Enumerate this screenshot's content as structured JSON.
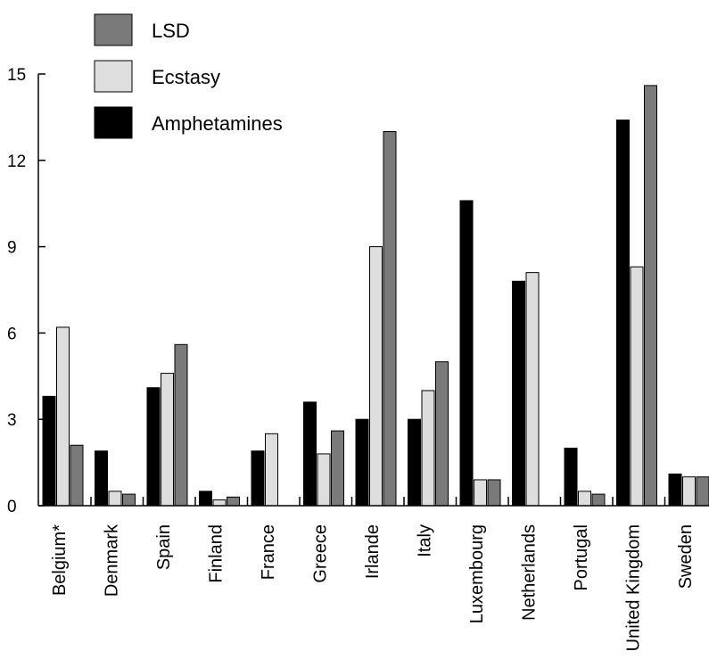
{
  "chart_data": {
    "type": "bar",
    "title": "",
    "xlabel": "",
    "ylabel": "",
    "ylim": [
      0,
      15
    ],
    "yticks": [
      0,
      3,
      6,
      9,
      12,
      15
    ],
    "categories": [
      "Belgium*",
      "Denmark",
      "Spain",
      "Finland",
      "France",
      "Greece",
      "Irlande",
      "Italy",
      "Luxembourg",
      "Netherlands",
      "Portugal",
      "United Kingdom",
      "Sweden"
    ],
    "series": [
      {
        "name": "Amphetamines",
        "color": "#000000",
        "values": [
          3.8,
          1.9,
          4.1,
          0.5,
          1.9,
          3.6,
          3.0,
          3.0,
          10.6,
          7.8,
          2.0,
          13.4,
          1.1
        ]
      },
      {
        "name": "Ecstasy",
        "color": "#dedede",
        "values": [
          6.2,
          0.5,
          4.6,
          0.2,
          2.5,
          1.8,
          9.0,
          4.0,
          0.9,
          8.1,
          0.5,
          8.3,
          1.0
        ]
      },
      {
        "name": "LSD",
        "color": "#7a7a7a",
        "values": [
          2.1,
          0.4,
          5.6,
          0.3,
          0.0,
          2.6,
          13.0,
          5.0,
          0.9,
          0.0,
          0.4,
          14.6,
          1.0
        ]
      }
    ],
    "legend": {
      "position": "top-left",
      "items": [
        {
          "label": "LSD",
          "color": "#7a7a7a"
        },
        {
          "label": "Ecstasy",
          "color": "#dedede"
        },
        {
          "label": "Amphetamines",
          "color": "#000000"
        }
      ]
    },
    "grid": false
  }
}
